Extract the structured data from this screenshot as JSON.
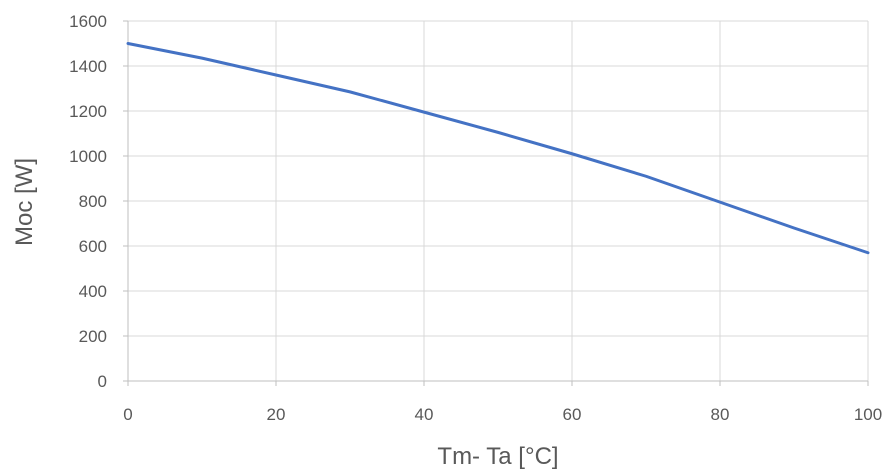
{
  "chart_data": {
    "type": "line",
    "title": "",
    "xlabel": "Tm- Ta [°C]",
    "ylabel": "Moc [W]",
    "xlim": [
      0,
      100
    ],
    "ylim": [
      0,
      1600
    ],
    "x_ticks": [
      0,
      20,
      40,
      60,
      80,
      100
    ],
    "y_ticks": [
      0,
      200,
      400,
      600,
      800,
      1000,
      1200,
      1400,
      1600
    ],
    "grid": true,
    "legend": "none",
    "series": [
      {
        "color": "#4472C4",
        "x": [
          0,
          10,
          20,
          30,
          40,
          50,
          60,
          70,
          80,
          90,
          100
        ],
        "y": [
          1500,
          1435,
          1360,
          1285,
          1195,
          1105,
          1010,
          910,
          795,
          680,
          570
        ]
      }
    ]
  }
}
